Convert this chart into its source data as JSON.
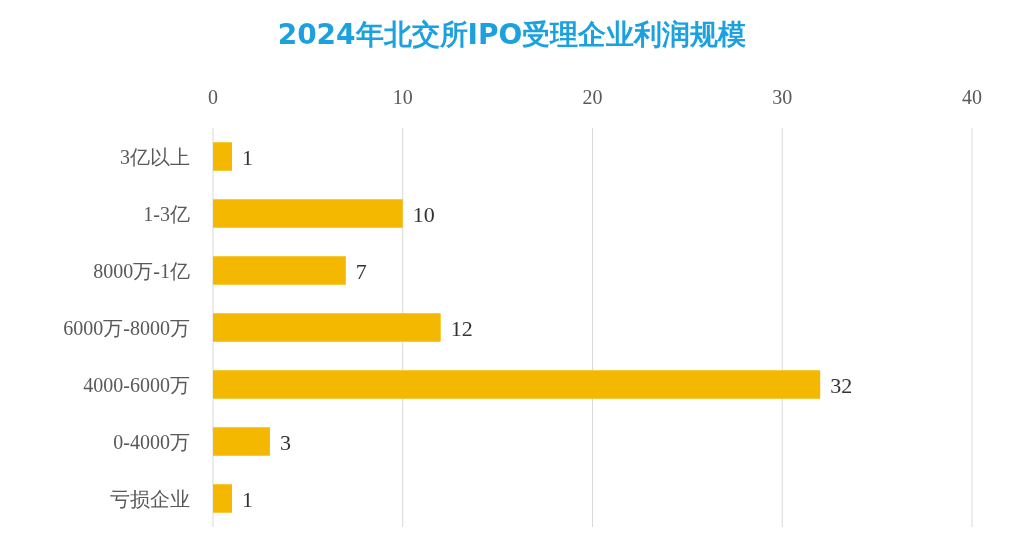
{
  "chart_data": {
    "type": "bar",
    "orientation": "horizontal",
    "title": "2024年北交所IPO受理企业利润规模",
    "categories": [
      "3亿以上",
      "1-3亿",
      "8000万-1亿",
      "6000万-8000万",
      "4000-6000万",
      "0-4000万",
      "亏损企业"
    ],
    "values": [
      1,
      10,
      7,
      12,
      32,
      3,
      1
    ],
    "color": "#f5b800",
    "xlim": [
      0,
      40
    ],
    "xticks": [
      0,
      10,
      20,
      30,
      40
    ],
    "grid": "x",
    "data_labels": true
  }
}
